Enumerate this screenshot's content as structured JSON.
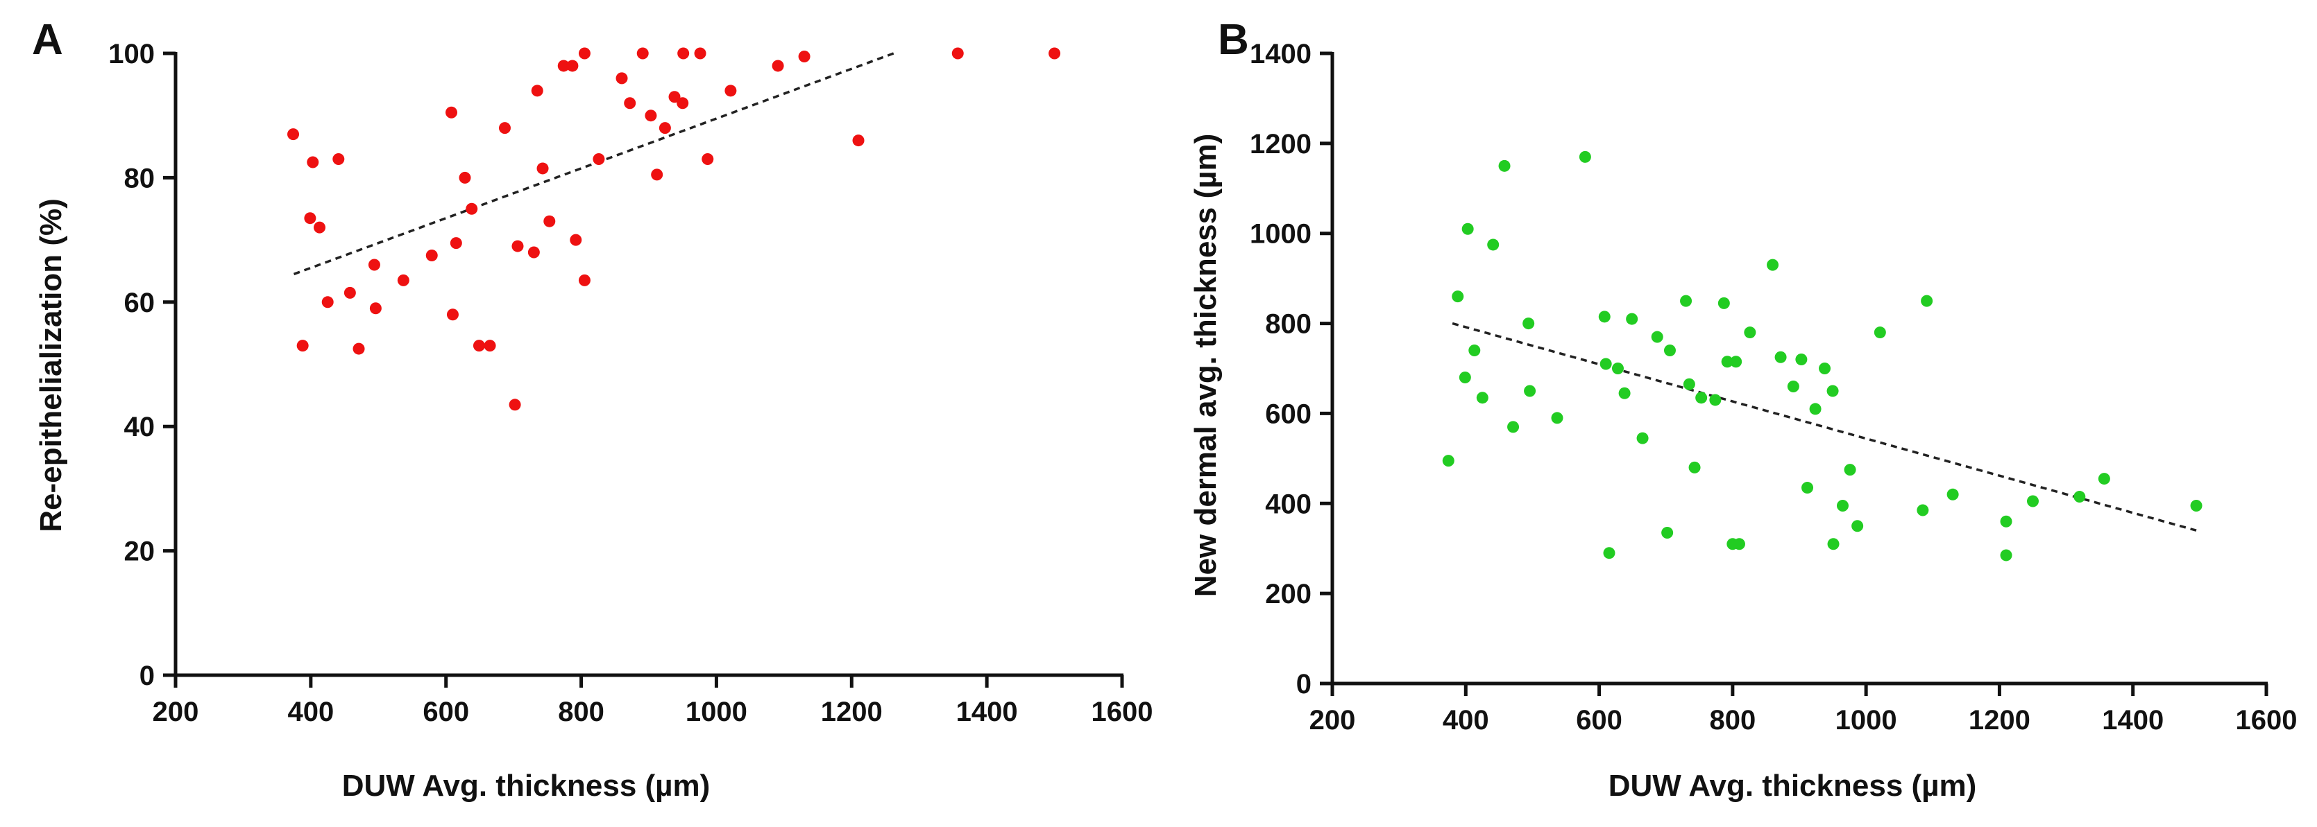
{
  "chart_data": [
    {
      "panel": "A",
      "type": "scatter",
      "title": "",
      "xlabel": "DUW Avg. thickness (µm)",
      "ylabel": "Re-epithelialization (%)",
      "xlim": [
        200,
        1600
      ],
      "ylim": [
        0,
        100
      ],
      "xticks": [
        200,
        400,
        600,
        800,
        1000,
        1200,
        1400,
        1600
      ],
      "yticks": [
        0,
        20,
        40,
        60,
        80,
        100
      ],
      "point_color": "#ee1111",
      "trendline_color": "#222222",
      "trendline": {
        "x": [
          375,
          1262
        ],
        "y": [
          64.5,
          100
        ]
      },
      "points": [
        [
          374,
          87
        ],
        [
          388,
          53
        ],
        [
          399,
          73.5
        ],
        [
          403,
          82.5
        ],
        [
          413,
          72
        ],
        [
          425,
          60
        ],
        [
          441,
          83
        ],
        [
          458,
          61.5
        ],
        [
          471,
          52.5
        ],
        [
          494,
          66
        ],
        [
          496,
          59
        ],
        [
          537,
          63.5
        ],
        [
          579,
          67.5
        ],
        [
          608,
          90.5
        ],
        [
          610,
          58
        ],
        [
          615,
          69.5
        ],
        [
          628,
          80
        ],
        [
          638,
          75
        ],
        [
          649,
          53
        ],
        [
          665,
          53
        ],
        [
          687,
          88
        ],
        [
          702,
          43.5
        ],
        [
          706,
          69
        ],
        [
          730,
          68
        ],
        [
          735,
          94
        ],
        [
          743,
          81.5
        ],
        [
          753,
          73
        ],
        [
          774,
          98
        ],
        [
          787,
          98
        ],
        [
          792,
          70
        ],
        [
          805,
          100
        ],
        [
          805,
          63.5
        ],
        [
          826,
          83
        ],
        [
          860,
          96
        ],
        [
          872,
          92
        ],
        [
          891,
          100
        ],
        [
          903,
          90
        ],
        [
          912,
          80.5
        ],
        [
          924,
          88
        ],
        [
          938,
          93
        ],
        [
          950,
          92
        ],
        [
          951,
          100
        ],
        [
          976,
          100
        ],
        [
          987,
          83
        ],
        [
          1021,
          94
        ],
        [
          1091,
          98
        ],
        [
          1130,
          99.5
        ],
        [
          1210,
          86
        ],
        [
          1357,
          100
        ],
        [
          1500,
          100
        ]
      ]
    },
    {
      "panel": "B",
      "type": "scatter",
      "title": "",
      "xlabel": "DUW Avg. thickness (µm)",
      "ylabel": "New dermal avg. thickness (µm)",
      "xlim": [
        200,
        1600
      ],
      "ylim": [
        0,
        1400
      ],
      "xticks": [
        200,
        400,
        600,
        800,
        1000,
        1200,
        1400,
        1600
      ],
      "yticks": [
        0,
        200,
        400,
        600,
        800,
        1000,
        1200,
        1400
      ],
      "point_color": "#22cc22",
      "trendline_color": "#222222",
      "trendline": {
        "x": [
          380,
          1495
        ],
        "y": [
          800,
          340
        ]
      },
      "points": [
        [
          374,
          495
        ],
        [
          388,
          860
        ],
        [
          399,
          680
        ],
        [
          403,
          1010
        ],
        [
          413,
          740
        ],
        [
          425,
          635
        ],
        [
          441,
          975
        ],
        [
          458,
          1150
        ],
        [
          471,
          570
        ],
        [
          494,
          800
        ],
        [
          496,
          650
        ],
        [
          537,
          590
        ],
        [
          579,
          1170
        ],
        [
          608,
          815
        ],
        [
          610,
          710
        ],
        [
          615,
          290
        ],
        [
          628,
          700
        ],
        [
          638,
          645
        ],
        [
          649,
          810
        ],
        [
          665,
          545
        ],
        [
          687,
          770
        ],
        [
          702,
          335
        ],
        [
          706,
          740
        ],
        [
          730,
          850
        ],
        [
          735,
          665
        ],
        [
          743,
          480
        ],
        [
          753,
          635
        ],
        [
          774,
          630
        ],
        [
          787,
          845
        ],
        [
          792,
          715
        ],
        [
          800,
          310
        ],
        [
          805,
          715
        ],
        [
          810,
          310
        ],
        [
          826,
          780
        ],
        [
          860,
          930
        ],
        [
          872,
          725
        ],
        [
          891,
          660
        ],
        [
          903,
          720
        ],
        [
          912,
          435
        ],
        [
          924,
          610
        ],
        [
          938,
          700
        ],
        [
          950,
          650
        ],
        [
          951,
          310
        ],
        [
          965,
          395
        ],
        [
          976,
          475
        ],
        [
          987,
          350
        ],
        [
          1021,
          780
        ],
        [
          1085,
          385
        ],
        [
          1091,
          850
        ],
        [
          1130,
          420
        ],
        [
          1210,
          360
        ],
        [
          1210,
          285
        ],
        [
          1250,
          405
        ],
        [
          1320,
          415
        ],
        [
          1357,
          455
        ],
        [
          1495,
          395
        ]
      ]
    }
  ]
}
